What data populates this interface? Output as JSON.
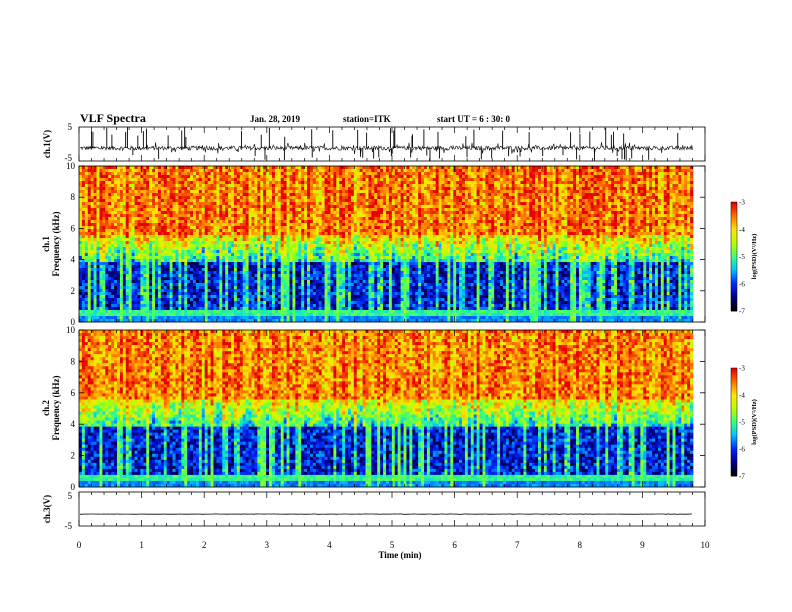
{
  "header": {
    "title": "VLF Spectra",
    "date": "Jan. 28, 2019",
    "station": "station=ITK",
    "start": "start UT =  6 : 30: 0"
  },
  "chart_data": [
    {
      "id": "ch1",
      "type": "line",
      "ylabel": "ch.1(V)",
      "yticks": [
        "5",
        "-5"
      ],
      "ylim": [
        -5,
        5
      ],
      "xlim": [
        0,
        10
      ],
      "series": [
        {
          "baseline": -1.2,
          "noise_amplitude": 0.6,
          "spikes": true
        }
      ],
      "color": "#000000"
    },
    {
      "id": "spec1",
      "type": "heatmap",
      "ylabel": "ch.1\nFrequency (kHz)",
      "ylim": [
        0,
        10
      ],
      "xlim": [
        0,
        9.85
      ],
      "yticks": [
        "0",
        "2",
        "4",
        "6",
        "8",
        "10"
      ],
      "colorbar": {
        "label": "log(PSD)(V²/Hz)",
        "range": [
          -7,
          -3
        ],
        "ticks": [
          "-3",
          "-4",
          "-5",
          "-6",
          "-7"
        ]
      }
    },
    {
      "id": "spec2",
      "type": "heatmap",
      "ylabel": "ch.2\nFrequency (kHz)",
      "ylim": [
        0,
        10
      ],
      "xlim": [
        0,
        9.85
      ],
      "yticks": [
        "0",
        "2",
        "4",
        "6",
        "8",
        "10"
      ],
      "colorbar": {
        "label": "log(PSD)(V²/Hz)",
        "range": [
          -7,
          -3
        ],
        "ticks": [
          "-3",
          "-4",
          "-5",
          "-6",
          "-7"
        ]
      }
    },
    {
      "id": "ch3",
      "type": "line",
      "ylabel": "ch.3(V)",
      "yticks": [
        "5",
        "-5"
      ],
      "ylim": [
        -5,
        5
      ],
      "xlim": [
        0,
        10
      ],
      "series": [
        {
          "baseline": -1.5,
          "noise_amplitude": 0.05,
          "spikes": false
        }
      ],
      "color": "#000000"
    }
  ],
  "xaxis": {
    "label": "Time (min)",
    "ticks": [
      "0",
      "1",
      "2",
      "3",
      "4",
      "5",
      "6",
      "7",
      "8",
      "9",
      "10"
    ],
    "range": [
      0,
      10
    ]
  }
}
